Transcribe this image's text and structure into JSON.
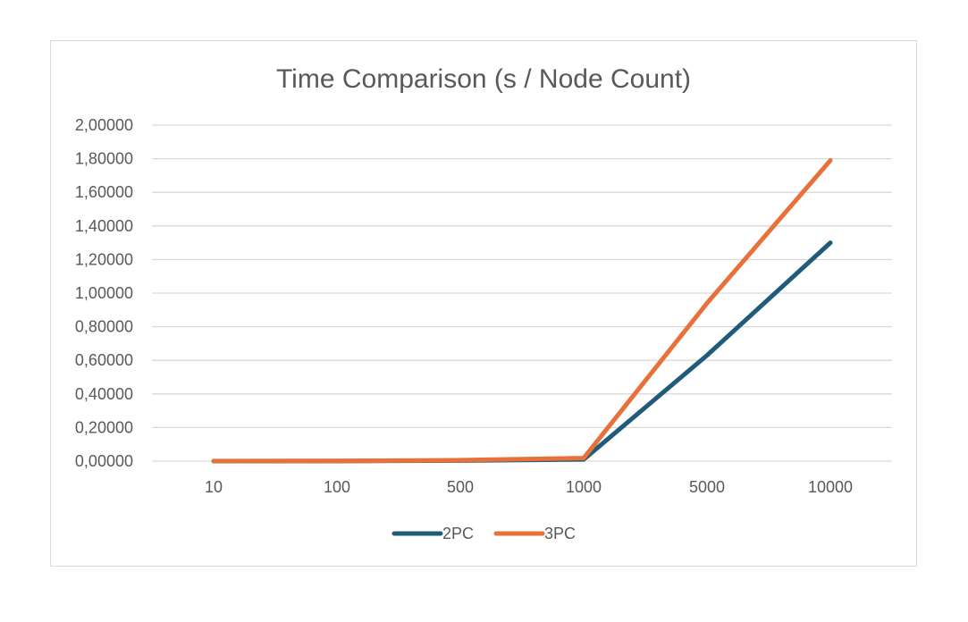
{
  "chart_data": {
    "type": "line",
    "title": "Time Comparison (s / Node Count)",
    "xlabel": "",
    "ylabel": "",
    "categories": [
      "10",
      "100",
      "500",
      "1000",
      "5000",
      "10000"
    ],
    "y_tick_labels": [
      "0,00000",
      "0,20000",
      "0,40000",
      "0,60000",
      "0,80000",
      "1,00000",
      "1,20000",
      "1,40000",
      "1,60000",
      "1,80000",
      "2,00000"
    ],
    "ylim": [
      0,
      2
    ],
    "grid": true,
    "legend_position": "bottom",
    "series": [
      {
        "name": "2PC",
        "color": "#1f5c7a",
        "values": [
          0.0002,
          0.0005,
          0.003,
          0.01,
          0.63,
          1.3
        ]
      },
      {
        "name": "3PC",
        "color": "#e8713a",
        "values": [
          0.0003,
          0.0008,
          0.006,
          0.018,
          0.94,
          1.79
        ]
      }
    ]
  }
}
